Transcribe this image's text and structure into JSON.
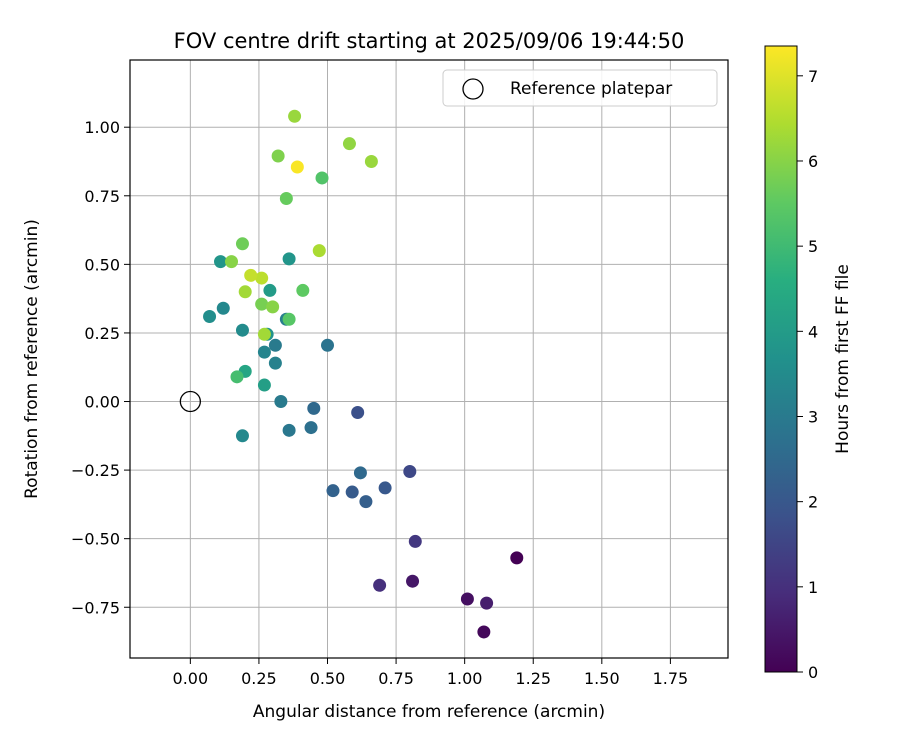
{
  "chart_data": {
    "type": "scatter",
    "title": "FOV centre drift starting at 2025/09/06 19:44:50",
    "xlabel": "Angular distance from reference (arcmin)",
    "ylabel": "Rotation from reference (arcmin)",
    "xlim": [
      -0.22,
      1.96
    ],
    "ylim": [
      -0.935,
      1.245
    ],
    "xticks": [
      0.0,
      0.25,
      0.5,
      0.75,
      1.0,
      1.25,
      1.5,
      1.75
    ],
    "xtick_labels": [
      "0.00",
      "0.25",
      "0.50",
      "0.75",
      "1.00",
      "1.25",
      "1.50",
      "1.75"
    ],
    "yticks": [
      -0.75,
      -0.5,
      -0.25,
      0.0,
      0.25,
      0.5,
      0.75,
      1.0
    ],
    "ytick_labels": [
      "−0.75",
      "−0.50",
      "−0.25",
      "0.00",
      "0.25",
      "0.50",
      "0.75",
      "1.00"
    ],
    "grid": true,
    "legend": {
      "location": "top-right",
      "entries": [
        {
          "label": "Reference platepar",
          "marker": "open-circle"
        }
      ]
    },
    "reference_point": {
      "x": 0.0,
      "y": 0.0
    },
    "colorbar": {
      "label": "Hours from first FF file",
      "range": [
        0,
        7.35
      ],
      "ticks": [
        0,
        1,
        2,
        3,
        4,
        5,
        6,
        7
      ],
      "tick_labels": [
        "0",
        "1",
        "2",
        "3",
        "4",
        "5",
        "6",
        "7"
      ],
      "colormap": "viridis"
    },
    "series": [
      {
        "name": "FOV centre drift",
        "points": [
          {
            "x": 1.19,
            "y": -0.57,
            "c": 0.0
          },
          {
            "x": 1.07,
            "y": -0.84,
            "c": 0.15
          },
          {
            "x": 1.01,
            "y": -0.72,
            "c": 0.3
          },
          {
            "x": 0.81,
            "y": -0.655,
            "c": 0.45
          },
          {
            "x": 1.08,
            "y": -0.735,
            "c": 0.6
          },
          {
            "x": 0.69,
            "y": -0.67,
            "c": 1.0
          },
          {
            "x": 0.82,
            "y": -0.51,
            "c": 1.2
          },
          {
            "x": 0.8,
            "y": -0.255,
            "c": 1.6
          },
          {
            "x": 0.61,
            "y": -0.04,
            "c": 1.8
          },
          {
            "x": 0.71,
            "y": -0.315,
            "c": 2.0
          },
          {
            "x": 0.59,
            "y": -0.33,
            "c": 2.1
          },
          {
            "x": 0.64,
            "y": -0.365,
            "c": 2.2
          },
          {
            "x": 0.52,
            "y": -0.325,
            "c": 2.3
          },
          {
            "x": 0.62,
            "y": -0.26,
            "c": 2.5
          },
          {
            "x": 0.45,
            "y": -0.025,
            "c": 2.5
          },
          {
            "x": 0.44,
            "y": -0.095,
            "c": 2.7
          },
          {
            "x": 0.5,
            "y": 0.205,
            "c": 2.8
          },
          {
            "x": 0.36,
            "y": -0.105,
            "c": 2.9
          },
          {
            "x": 0.33,
            "y": 0.0,
            "c": 3.0
          },
          {
            "x": 0.31,
            "y": 0.205,
            "c": 3.0
          },
          {
            "x": 0.35,
            "y": 0.3,
            "c": 3.1
          },
          {
            "x": 0.31,
            "y": 0.14,
            "c": 3.2
          },
          {
            "x": 0.27,
            "y": 0.18,
            "c": 3.3
          },
          {
            "x": 0.19,
            "y": -0.125,
            "c": 3.4
          },
          {
            "x": 0.12,
            "y": 0.34,
            "c": 3.4
          },
          {
            "x": 0.19,
            "y": 0.26,
            "c": 3.5
          },
          {
            "x": 0.07,
            "y": 0.31,
            "c": 3.6
          },
          {
            "x": 0.28,
            "y": 0.245,
            "c": 3.7
          },
          {
            "x": 0.36,
            "y": 0.52,
            "c": 3.8
          },
          {
            "x": 0.11,
            "y": 0.51,
            "c": 3.8
          },
          {
            "x": 0.29,
            "y": 0.405,
            "c": 4.0
          },
          {
            "x": 0.27,
            "y": 0.06,
            "c": 4.1
          },
          {
            "x": 0.2,
            "y": 0.11,
            "c": 4.3
          },
          {
            "x": 0.17,
            "y": 0.09,
            "c": 5.1
          },
          {
            "x": 0.48,
            "y": 0.815,
            "c": 5.3
          },
          {
            "x": 0.36,
            "y": 0.3,
            "c": 5.4
          },
          {
            "x": 0.41,
            "y": 0.405,
            "c": 5.5
          },
          {
            "x": 0.35,
            "y": 0.74,
            "c": 5.6
          },
          {
            "x": 0.19,
            "y": 0.575,
            "c": 5.7
          },
          {
            "x": 0.26,
            "y": 0.355,
            "c": 5.8
          },
          {
            "x": 0.32,
            "y": 0.895,
            "c": 5.9
          },
          {
            "x": 0.3,
            "y": 0.345,
            "c": 6.0
          },
          {
            "x": 0.15,
            "y": 0.51,
            "c": 6.0
          },
          {
            "x": 0.58,
            "y": 0.94,
            "c": 6.1
          },
          {
            "x": 0.66,
            "y": 0.875,
            "c": 6.2
          },
          {
            "x": 0.38,
            "y": 1.04,
            "c": 6.2
          },
          {
            "x": 0.27,
            "y": 0.245,
            "c": 6.3
          },
          {
            "x": 0.2,
            "y": 0.4,
            "c": 6.3
          },
          {
            "x": 0.47,
            "y": 0.55,
            "c": 6.4
          },
          {
            "x": 0.26,
            "y": 0.45,
            "c": 6.6
          },
          {
            "x": 0.22,
            "y": 0.46,
            "c": 6.7
          },
          {
            "x": 0.39,
            "y": 0.855,
            "c": 7.3
          }
        ]
      }
    ]
  }
}
